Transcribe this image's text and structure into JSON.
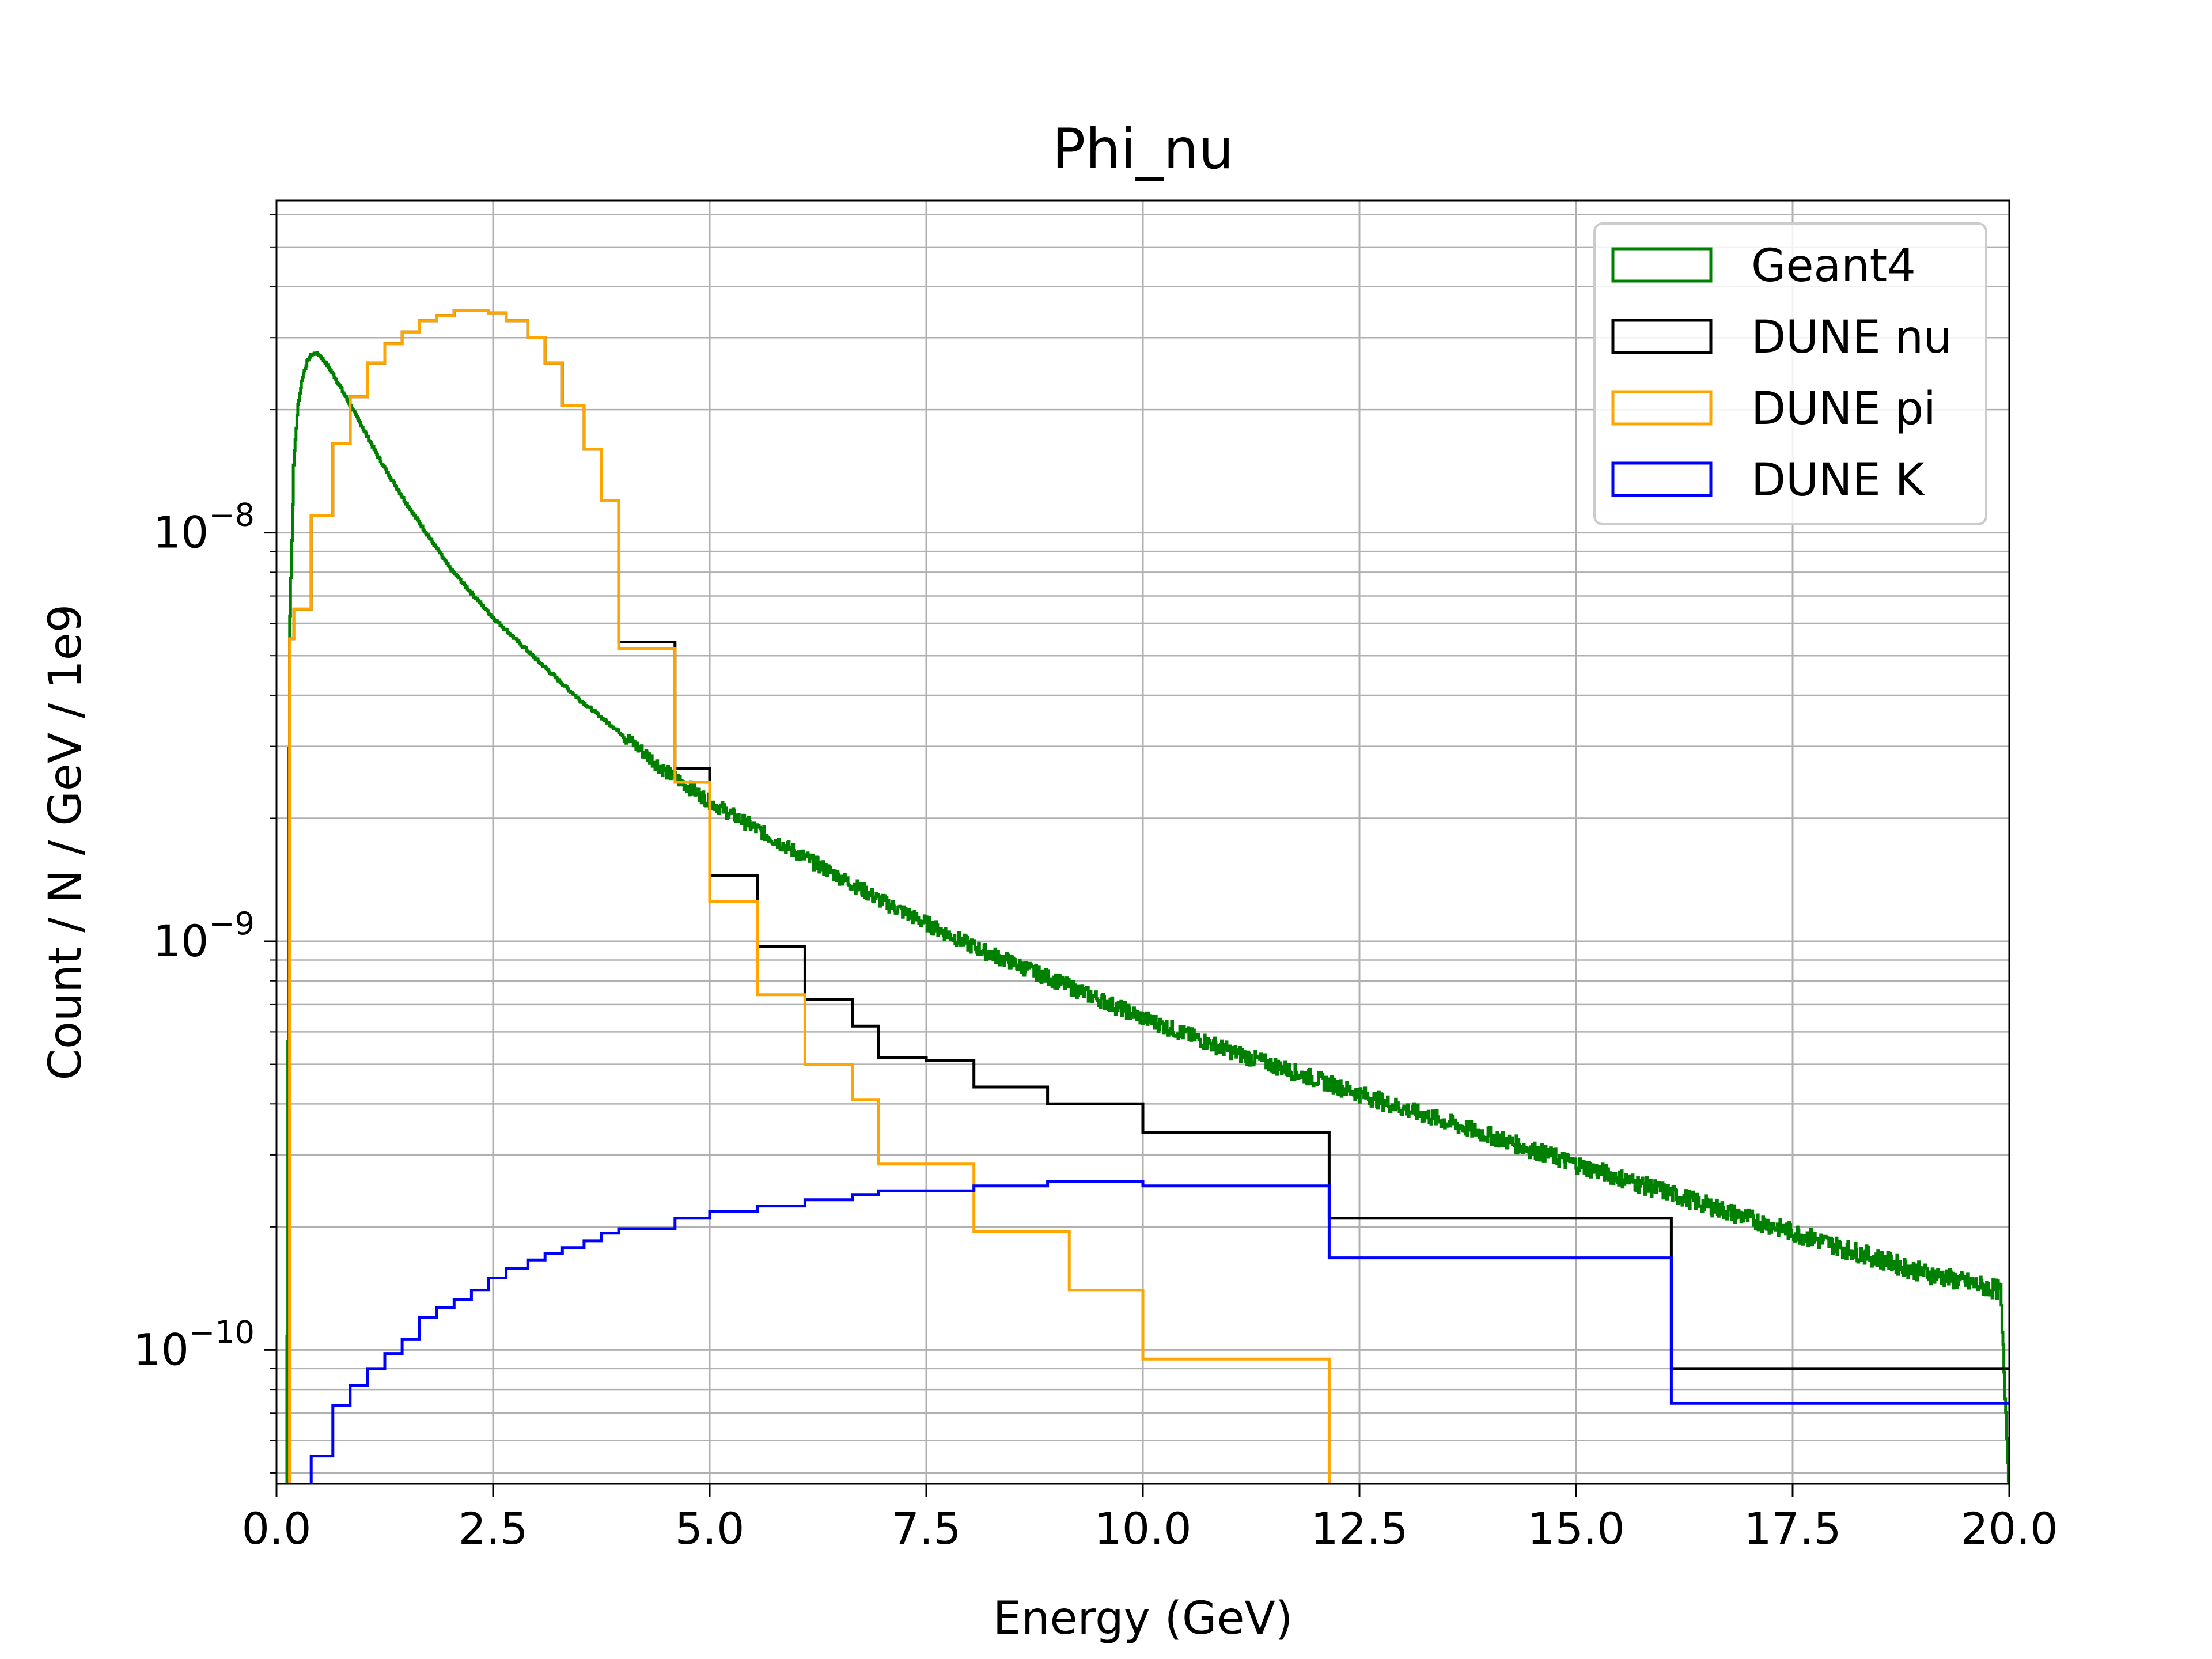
{
  "chart_data": {
    "type": "step",
    "title": "Phi_nu",
    "xlabel": "Energy (GeV)",
    "ylabel": "Count / N / GeV / 1e9",
    "xlim": [
      0,
      20
    ],
    "ylim": [
      4.7e-11,
      6.5e-08
    ],
    "yscale": "log",
    "grid": "both (major and minor)",
    "legend_position": "top-right",
    "x_ticks": [
      0,
      2.5,
      5,
      7.5,
      10,
      12.5,
      15,
      17.5,
      20
    ],
    "x_tick_labels": [
      "0.0",
      "2.5",
      "5.0",
      "7.5",
      "10.0",
      "12.5",
      "15.0",
      "17.5",
      "20.0"
    ],
    "y_ticks": [
      1e-10,
      1e-09,
      1e-08
    ],
    "y_tick_labels": [
      {
        "base": "10",
        "exp": "−10"
      },
      {
        "base": "10",
        "exp": "−9"
      },
      {
        "base": "10",
        "exp": "−8"
      }
    ],
    "series": [
      {
        "name": "Geant4",
        "color": "#008000",
        "kind": "fine-histogram",
        "x": [
          0.12,
          0.15,
          0.2,
          0.25,
          0.3,
          0.35,
          0.4,
          0.45,
          0.5,
          0.6,
          0.7,
          0.8,
          1.0,
          1.2,
          1.5,
          2.0,
          2.5,
          3.0,
          3.5,
          4.0,
          4.5,
          5.0,
          6.0,
          7.0,
          8.0,
          9.0,
          10.0,
          11.0,
          12.0,
          13.0,
          14.0,
          15.0,
          16.0,
          17.0,
          18.0,
          19.0,
          19.9,
          20.0
        ],
        "y": [
          4.7e-11,
          5.5e-09,
          1.5e-08,
          2.05e-08,
          2.4e-08,
          2.6e-08,
          2.72e-08,
          2.75e-08,
          2.72e-08,
          2.55e-08,
          2.35e-08,
          2.15e-08,
          1.8e-08,
          1.5e-08,
          1.18e-08,
          8.2e-09,
          6.2e-09,
          4.9e-09,
          3.9e-09,
          3.2e-09,
          2.6e-09,
          2.2e-09,
          1.65e-09,
          1.25e-09,
          9.8e-10,
          8e-10,
          6.5e-10,
          5.4e-10,
          4.6e-10,
          3.9e-10,
          3.35e-10,
          2.85e-10,
          2.45e-10,
          2.1e-10,
          1.8e-10,
          1.55e-10,
          1.4e-10,
          4.7e-11
        ]
      },
      {
        "name": "DUNE nu",
        "color": "#000000",
        "kind": "step",
        "edges": [
          0.15,
          0.2,
          0.4,
          0.65,
          0.85,
          1.05,
          1.25,
          1.45,
          1.65,
          1.85,
          2.05,
          2.25,
          2.45,
          2.65,
          2.9,
          3.1,
          3.3,
          3.55,
          3.75,
          3.95,
          4.6,
          5.0,
          5.55,
          6.1,
          6.65,
          6.95,
          7.5,
          8.05,
          8.9,
          10.0,
          12.15,
          16.1,
          20.0
        ],
        "values": [
          5.5e-09,
          6.5e-09,
          1.1e-08,
          1.65e-08,
          2.15e-08,
          2.6e-08,
          2.9e-08,
          3.1e-08,
          3.3e-08,
          3.4e-08,
          3.5e-08,
          3.5e-08,
          3.45e-08,
          3.3e-08,
          3e-08,
          2.6e-08,
          2.05e-08,
          1.6e-08,
          1.2e-08,
          5.4e-09,
          2.65e-09,
          1.45e-09,
          9.7e-10,
          7.2e-10,
          6.2e-10,
          5.2e-10,
          5.1e-10,
          4.4e-10,
          4e-10,
          3.4e-10,
          2.1e-10,
          9e-11
        ]
      },
      {
        "name": "DUNE pi",
        "color": "#FFA500",
        "kind": "step",
        "edges": [
          0.15,
          0.2,
          0.4,
          0.65,
          0.85,
          1.05,
          1.25,
          1.45,
          1.65,
          1.85,
          2.05,
          2.25,
          2.45,
          2.65,
          2.9,
          3.1,
          3.3,
          3.55,
          3.75,
          3.95,
          4.6,
          5.0,
          5.55,
          6.1,
          6.65,
          6.95,
          8.05,
          9.15,
          10.0,
          12.15
        ],
        "values": [
          5.5e-09,
          6.5e-09,
          1.1e-08,
          1.65e-08,
          2.15e-08,
          2.6e-08,
          2.9e-08,
          3.1e-08,
          3.3e-08,
          3.4e-08,
          3.5e-08,
          3.5e-08,
          3.45e-08,
          3.3e-08,
          3e-08,
          2.6e-08,
          2.05e-08,
          1.6e-08,
          1.2e-08,
          5.2e-09,
          2.45e-09,
          1.25e-09,
          7.4e-10,
          5e-10,
          4.1e-10,
          2.85e-10,
          1.95e-10,
          1.4e-10,
          9.5e-11
        ]
      },
      {
        "name": "DUNE K",
        "color": "#0000FF",
        "kind": "step",
        "edges": [
          0.4,
          0.65,
          0.85,
          1.05,
          1.25,
          1.45,
          1.65,
          1.85,
          2.05,
          2.25,
          2.45,
          2.65,
          2.9,
          3.1,
          3.3,
          3.55,
          3.75,
          3.95,
          4.6,
          5.0,
          5.55,
          6.1,
          6.65,
          6.95,
          8.05,
          8.9,
          10.0,
          12.15,
          16.1,
          20.0
        ],
        "values": [
          5.5e-11,
          7.3e-11,
          8.2e-11,
          9e-11,
          9.8e-11,
          1.06e-10,
          1.2e-10,
          1.27e-10,
          1.33e-10,
          1.4e-10,
          1.5e-10,
          1.58e-10,
          1.66e-10,
          1.72e-10,
          1.78e-10,
          1.85e-10,
          1.93e-10,
          1.98e-10,
          2.1e-10,
          2.18e-10,
          2.25e-10,
          2.33e-10,
          2.4e-10,
          2.45e-10,
          2.52e-10,
          2.58e-10,
          2.52e-10,
          1.68e-10,
          7.4e-11
        ]
      }
    ]
  }
}
